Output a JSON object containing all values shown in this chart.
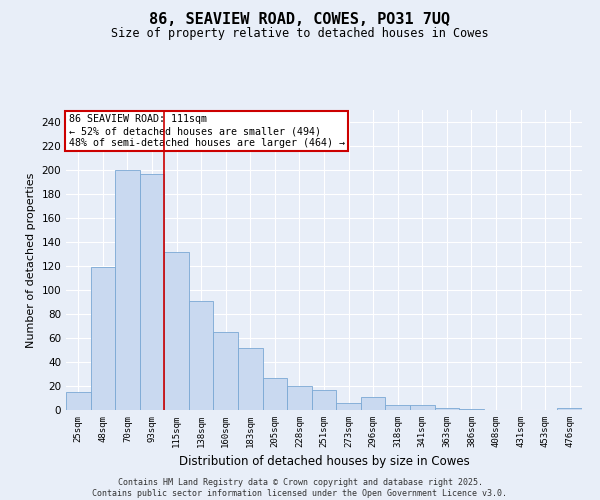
{
  "title1": "86, SEAVIEW ROAD, COWES, PO31 7UQ",
  "title2": "Size of property relative to detached houses in Cowes",
  "xlabel": "Distribution of detached houses by size in Cowes",
  "ylabel": "Number of detached properties",
  "categories": [
    "25sqm",
    "48sqm",
    "70sqm",
    "93sqm",
    "115sqm",
    "138sqm",
    "160sqm",
    "183sqm",
    "205sqm",
    "228sqm",
    "251sqm",
    "273sqm",
    "296sqm",
    "318sqm",
    "341sqm",
    "363sqm",
    "386sqm",
    "408sqm",
    "431sqm",
    "453sqm",
    "476sqm"
  ],
  "values": [
    15,
    119,
    200,
    197,
    132,
    91,
    65,
    52,
    27,
    20,
    17,
    6,
    11,
    4,
    4,
    2,
    1,
    0,
    0,
    0,
    2
  ],
  "bar_color": "#c9d9f0",
  "bar_edge_color": "#7aa8d4",
  "red_line_x": 3.5,
  "property_label": "86 SEAVIEW ROAD: 111sqm",
  "annotation_line1": "← 52% of detached houses are smaller (494)",
  "annotation_line2": "48% of semi-detached houses are larger (464) →",
  "annotation_box_color": "#ffffff",
  "annotation_box_edge_color": "#cc0000",
  "red_line_color": "#cc0000",
  "ylim": [
    0,
    250
  ],
  "yticks": [
    0,
    20,
    40,
    60,
    80,
    100,
    120,
    140,
    160,
    180,
    200,
    220,
    240
  ],
  "background_color": "#e8eef8",
  "plot_background_color": "#e8eef8",
  "grid_color": "#ffffff",
  "footer1": "Contains HM Land Registry data © Crown copyright and database right 2025.",
  "footer2": "Contains public sector information licensed under the Open Government Licence v3.0."
}
